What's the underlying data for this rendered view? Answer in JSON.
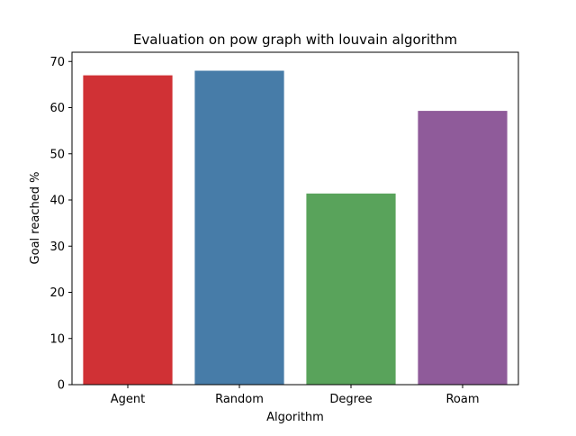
{
  "chart_data": {
    "type": "bar",
    "title": "Evaluation on pow graph with louvain algorithm",
    "xlabel": "Algorithm",
    "ylabel": "Goal reached %",
    "categories": [
      "Agent",
      "Random",
      "Degree",
      "Roam"
    ],
    "values": [
      67.0,
      68.0,
      41.4,
      59.3
    ],
    "colors": [
      "#d03135",
      "#477ca8",
      "#59a35b",
      "#8f5b9a"
    ],
    "ylim": [
      0,
      72
    ],
    "yticks": [
      0,
      10,
      20,
      30,
      40,
      50,
      60,
      70
    ],
    "grid": false,
    "legend": "none"
  }
}
